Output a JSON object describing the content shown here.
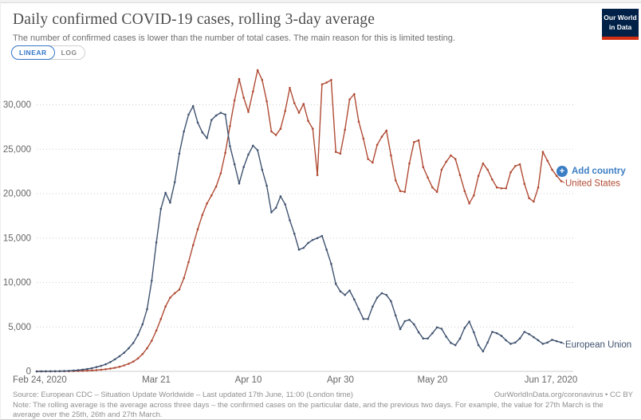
{
  "header": {
    "title": "Daily confirmed COVID-19 cases, rolling 3-day average",
    "subtitle": "The number of confirmed cases is lower than the number of total cases. The main reason for this is limited testing.",
    "scale_toggle": {
      "linear_label": "LINEAR",
      "log_label": "LOG",
      "active": "LINEAR"
    },
    "logo": {
      "line1": "Our World",
      "line2": "in Data",
      "bg_color": "#002147",
      "bar_color": "#d42e12"
    }
  },
  "annotations": {
    "add_country_label": "Add country",
    "add_country_color": "#3b7dc4",
    "plus_icon": "+"
  },
  "colors": {
    "united_states": "#b04b34",
    "european_union": "#405370",
    "grid": "#cccccc",
    "axis_text": "#666666"
  },
  "footer": {
    "source_left": "Source: European CDC – Situation Update Worldwide – Last updated 17th June, 11:00 (London time)",
    "source_right": "OurWorldInData.org/coronavirus • CC BY",
    "note": "Note: The rolling average is the average across three days – the confirmed cases on the particular date, and the previous two days. For example, the value for 27th March is the average over the 25th, 26th and 27th March."
  },
  "chart_data": {
    "type": "line",
    "title": "Daily confirmed COVID-19 cases, rolling 3-day average",
    "x_unit": "days since 2020-02-24",
    "start_date": "Feb 24, 2020",
    "end_date": "Jun 17, 2020",
    "n_points": 115,
    "ylim": [
      0,
      35000
    ],
    "grid": "dotted-horizontal",
    "legend_position": "right-end-labels",
    "x_ticks": [
      {
        "index": 0,
        "label": "Feb 24, 2020"
      },
      {
        "index": 26,
        "label": "Mar 21"
      },
      {
        "index": 46,
        "label": "Apr 10"
      },
      {
        "index": 66,
        "label": "Apr 30"
      },
      {
        "index": 86,
        "label": "May 20"
      },
      {
        "index": 114,
        "label": "Jun 17, 2020"
      }
    ],
    "y_ticks": [
      {
        "value": 0,
        "label": "0"
      },
      {
        "value": 5000,
        "label": "5,000"
      },
      {
        "value": 10000,
        "label": "10,000"
      },
      {
        "value": 15000,
        "label": "15,000"
      },
      {
        "value": 20000,
        "label": "20,000"
      },
      {
        "value": 25000,
        "label": "25,000"
      },
      {
        "value": 30000,
        "label": "30,000"
      }
    ],
    "series": [
      {
        "name": "United States",
        "color": "#b04b34",
        "values": [
          0,
          0,
          5,
          5,
          10,
          15,
          20,
          25,
          35,
          45,
          60,
          80,
          105,
          140,
          185,
          240,
          310,
          400,
          520,
          670,
          860,
          1100,
          1450,
          1950,
          2600,
          3450,
          4600,
          5900,
          7300,
          8300,
          8800,
          9200,
          10500,
          12300,
          14200,
          16000,
          17600,
          18900,
          19800,
          20800,
          22300,
          24600,
          27600,
          30500,
          32900,
          30800,
          29200,
          31500,
          33900,
          32800,
          30400,
          27000,
          26600,
          27300,
          29300,
          31900,
          30200,
          29100,
          30100,
          28200,
          27300,
          22100,
          32300,
          32500,
          32800,
          24700,
          24500,
          27200,
          30600,
          31200,
          28100,
          26200,
          23900,
          23500,
          25500,
          26400,
          27100,
          24300,
          21500,
          20300,
          20200,
          23400,
          25800,
          26000,
          23000,
          21800,
          20700,
          20200,
          22700,
          23600,
          24300,
          23900,
          22100,
          20300,
          18900,
          19800,
          22000,
          23400,
          22700,
          21600,
          20700,
          20600,
          20600,
          22400,
          23100,
          23300,
          21100,
          19500,
          19100,
          20700,
          24700,
          23700,
          22700,
          22000,
          21400
        ]
      },
      {
        "name": "European Union",
        "color": "#405370",
        "values": [
          0,
          5,
          10,
          15,
          20,
          30,
          45,
          65,
          95,
          140,
          200,
          270,
          360,
          480,
          620,
          800,
          1050,
          1350,
          1700,
          2100,
          2600,
          3200,
          4100,
          5300,
          7000,
          10200,
          14500,
          18300,
          20100,
          19000,
          21300,
          24500,
          27000,
          28900,
          29850,
          28000,
          26900,
          26250,
          28300,
          28800,
          29100,
          28900,
          25350,
          23300,
          21150,
          23000,
          24400,
          25400,
          24900,
          22700,
          20900,
          17900,
          18400,
          19700,
          18800,
          17000,
          15500,
          13700,
          13900,
          14450,
          14800,
          15000,
          15250,
          13700,
          12100,
          9850,
          9000,
          8600,
          9100,
          8100,
          7000,
          5900,
          5900,
          7300,
          8300,
          8800,
          8600,
          7900,
          6300,
          4750,
          5650,
          5800,
          5300,
          4400,
          3700,
          3700,
          4300,
          4950,
          4800,
          3900,
          3200,
          2950,
          3700,
          4900,
          5600,
          4400,
          2950,
          2250,
          3250,
          4450,
          4300,
          4000,
          3500,
          3100,
          3250,
          3700,
          4450,
          4200,
          3850,
          3500,
          3100,
          3250,
          3550,
          3400,
          3250
        ]
      }
    ]
  }
}
